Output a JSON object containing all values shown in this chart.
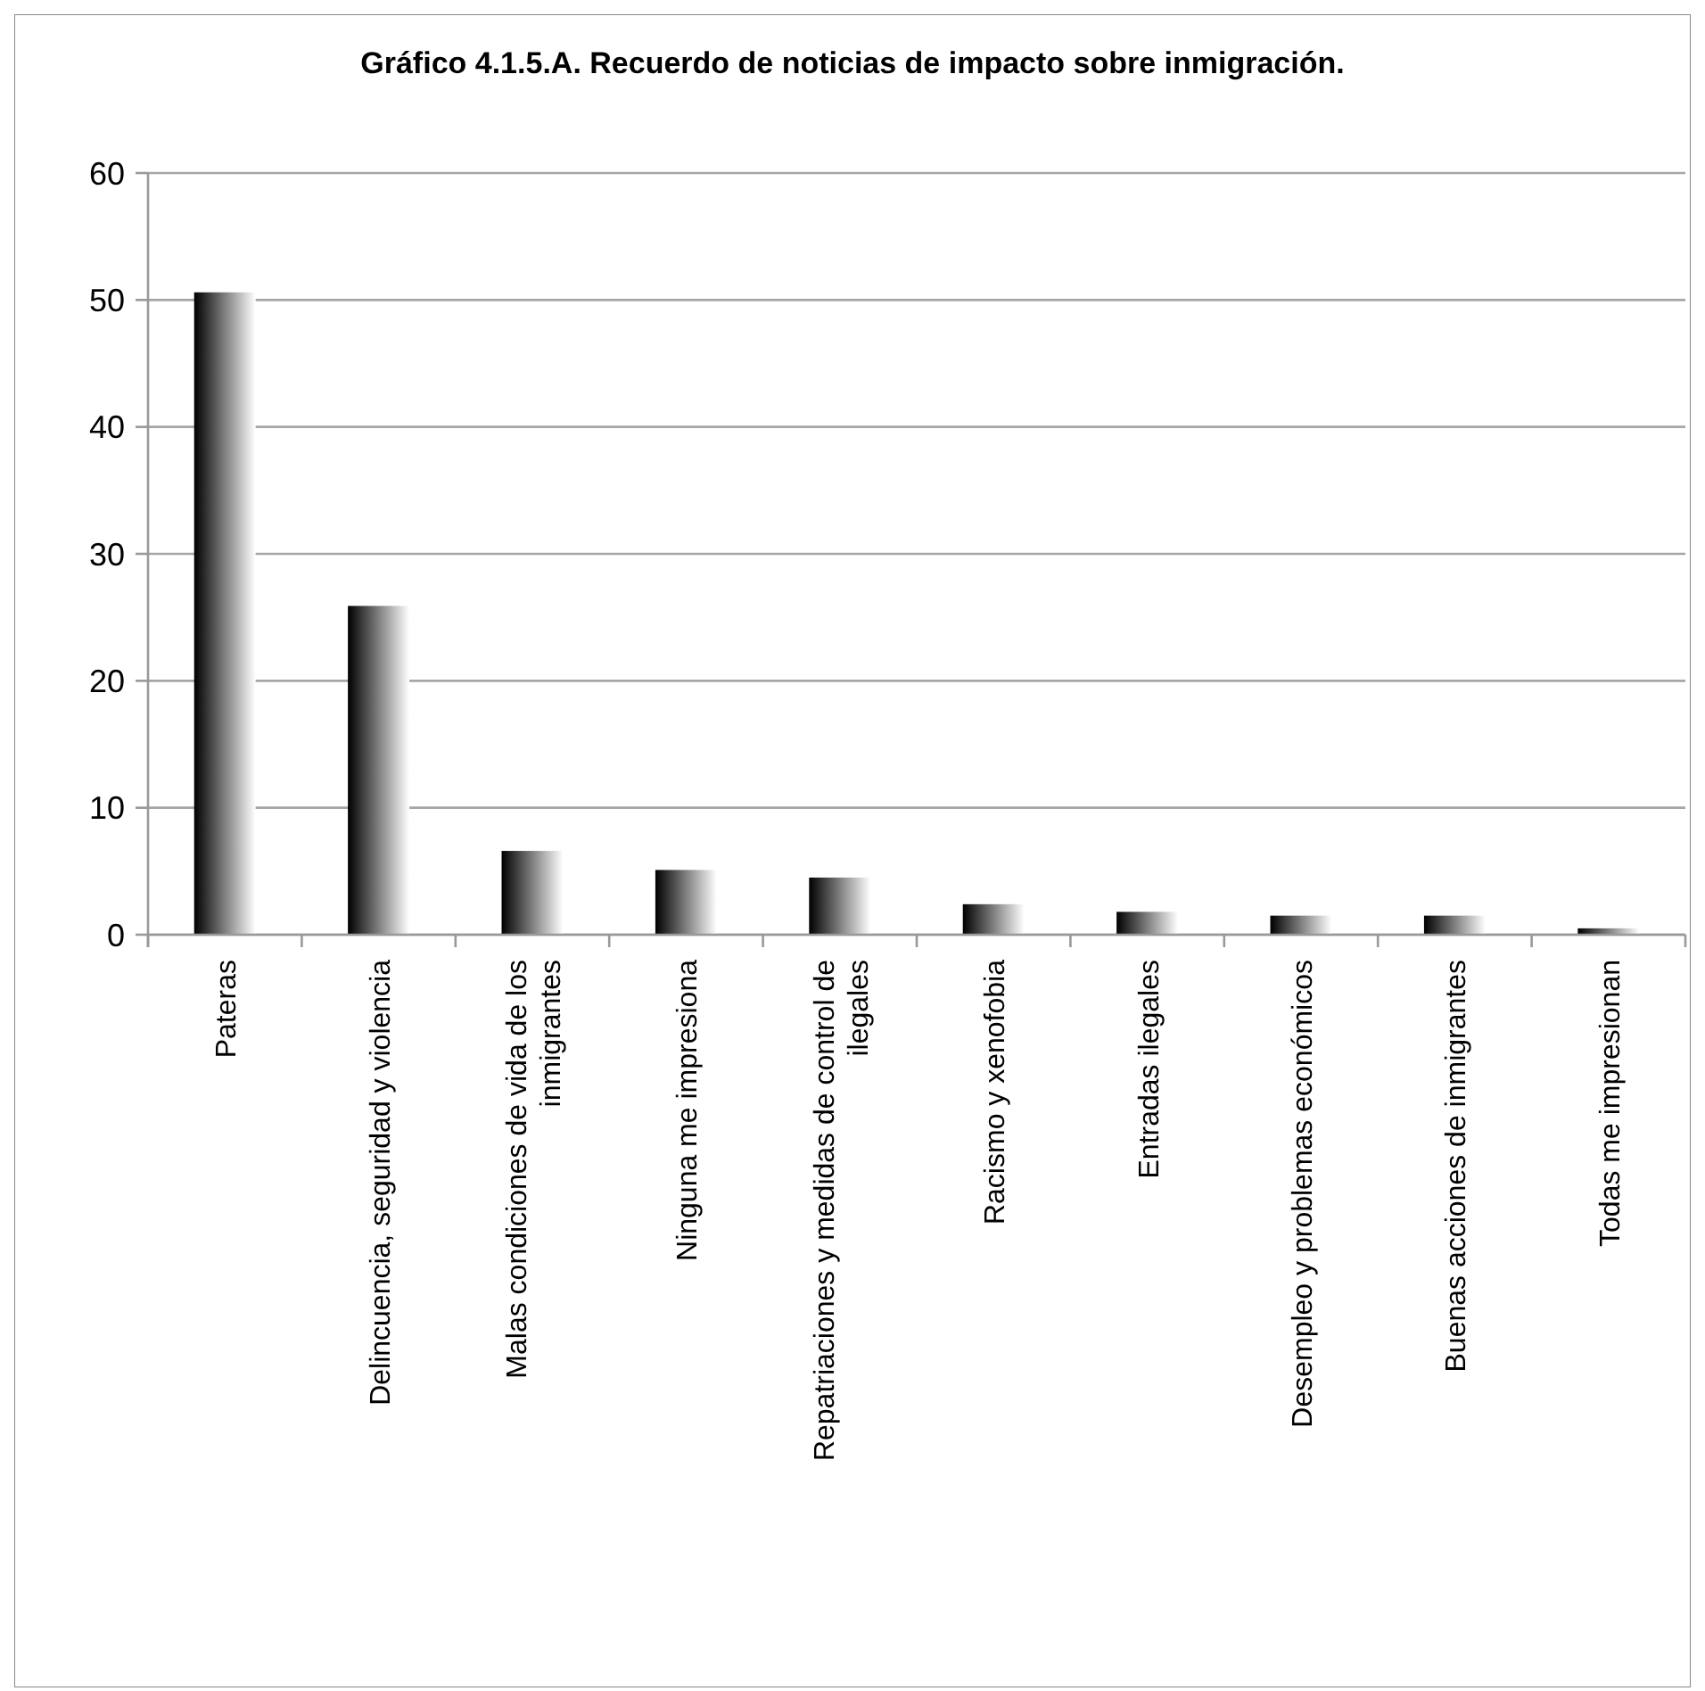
{
  "chart_data": {
    "type": "bar",
    "title": "Gráfico 4.1.5.A. Recuerdo de noticias de impacto sobre inmigración.",
    "categories": [
      "Pateras",
      "Delincuencia, seguridad y violencia",
      "Malas condiciones de vida de los inmigrantes",
      "Ninguna me impresiona",
      "Repatriaciones y medidas de control de ilegales",
      "Racismo y xenofobia",
      "Entradas ilegales",
      "Desempleo y problemas económicos",
      "Buenas acciones de inmigrantes",
      "Todas me impresionan"
    ],
    "values": [
      50.6,
      25.9,
      6.6,
      5.1,
      4.5,
      2.4,
      1.8,
      1.5,
      1.5,
      0.5
    ],
    "color": "#000000",
    "ylim": [
      0,
      60
    ],
    "yticks": [
      0,
      10,
      20,
      30,
      40,
      50,
      60
    ],
    "grid": "y"
  }
}
